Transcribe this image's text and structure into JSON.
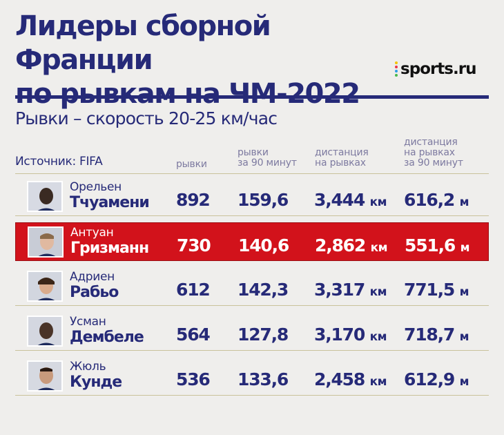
{
  "title_line1": "Лидеры сборной Франции",
  "title_line2": "по рывкам на ЧМ-2022",
  "logo": {
    "text": "sports.ru",
    "dot_colors": [
      "#f2c300",
      "#e8354a",
      "#2f9ee5",
      "#47b84b"
    ]
  },
  "subtitle": "Рывки – скорость 20-25 км/час",
  "source": "Источник: FIFA",
  "columns": {
    "sprints": [
      "рывки"
    ],
    "sprints90": [
      "рывки",
      "за 90 минут"
    ],
    "distance": [
      "дистанция",
      "на рывках"
    ],
    "distance90": [
      "дистанция",
      "на рывках",
      "за 90 минут"
    ]
  },
  "units": {
    "km": "км",
    "m": "м"
  },
  "highlight_color": "#d2121b",
  "players": [
    {
      "first": "Орельен",
      "last": "Тчуамени",
      "sprints": "892",
      "sprints90": "159,6",
      "distance": "3,444",
      "distance90": "616,2",
      "highlighted": false
    },
    {
      "first": "Антуан",
      "last": "Гризманн",
      "sprints": "730",
      "sprints90": "140,6",
      "distance": "2,862",
      "distance90": "551,6",
      "highlighted": true
    },
    {
      "first": "Адриен",
      "last": "Рабьо",
      "sprints": "612",
      "sprints90": "142,3",
      "distance": "3,317",
      "distance90": "771,5",
      "highlighted": false
    },
    {
      "first": "Усман",
      "last": "Дембеле",
      "sprints": "564",
      "sprints90": "127,8",
      "distance": "3,170",
      "distance90": "718,7",
      "highlighted": false
    },
    {
      "first": "Жюль",
      "last": "Кунде",
      "sprints": "536",
      "sprints90": "133,6",
      "distance": "2,458",
      "distance90": "612,9",
      "highlighted": false
    }
  ]
}
